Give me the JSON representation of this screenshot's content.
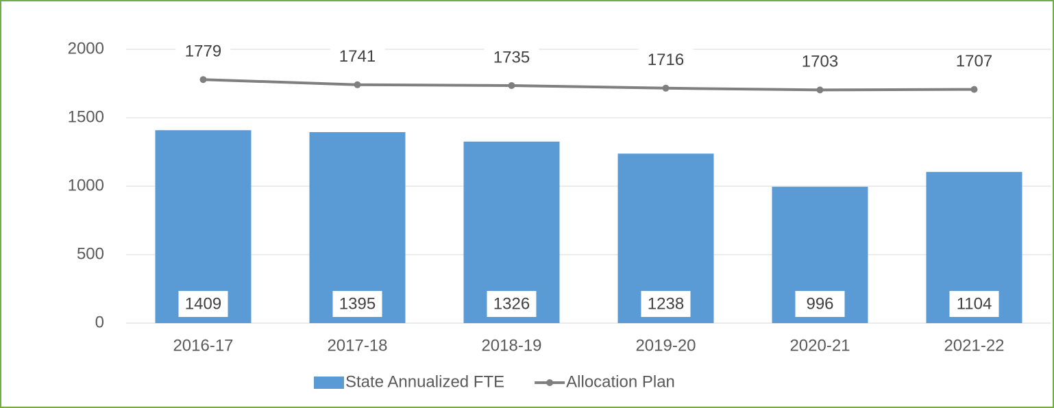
{
  "chart_data": {
    "type": "bar",
    "categories": [
      "2016-17",
      "2017-18",
      "2018-19",
      "2019-20",
      "2020-21",
      "2021-22"
    ],
    "series": [
      {
        "name": "State Annualized FTE",
        "type": "bar",
        "color": "#5b9bd5",
        "values": [
          1409,
          1395,
          1326,
          1238,
          996,
          1104
        ]
      },
      {
        "name": "Allocation Plan",
        "type": "line",
        "color": "#7f7f7f",
        "values": [
          1779,
          1741,
          1735,
          1716,
          1703,
          1707
        ]
      }
    ],
    "ylim": [
      0,
      2000
    ],
    "yticks": [
      0,
      500,
      1000,
      1500,
      2000
    ],
    "grid": true,
    "legend": "bottom"
  }
}
